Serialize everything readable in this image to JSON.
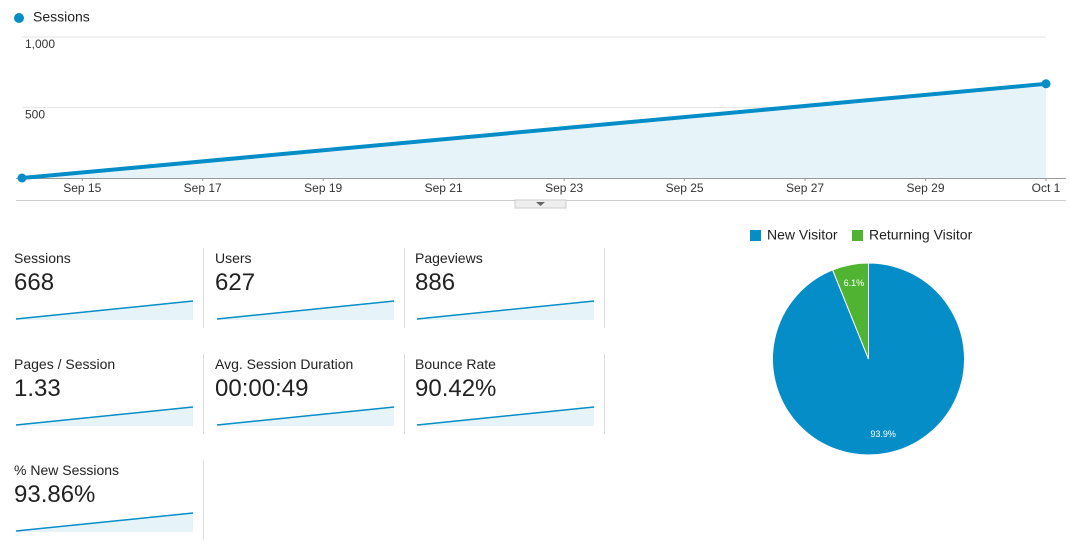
{
  "chart_data": [
    {
      "type": "line",
      "series": [
        {
          "name": "Sessions",
          "color": "#058dc7",
          "values": [
            0,
            668
          ]
        }
      ],
      "x": [
        14,
        31
      ],
      "xlim": [
        14,
        31
      ],
      "xticks": [
        {
          "value": 15,
          "label": "Sep 15"
        },
        {
          "value": 17,
          "label": "Sep 17"
        },
        {
          "value": 19,
          "label": "Sep 19"
        },
        {
          "value": 21,
          "label": "Sep 21"
        },
        {
          "value": 23,
          "label": "Sep 23"
        },
        {
          "value": 25,
          "label": "Sep 25"
        },
        {
          "value": 27,
          "label": "Sep 27"
        },
        {
          "value": 29,
          "label": "Sep 29"
        },
        {
          "value": 31,
          "label": "Oct 1"
        }
      ],
      "ylim": [
        0,
        1000
      ],
      "yticks": [
        500,
        {
          "value": 1000,
          "label": "1,000"
        }
      ],
      "grid": true
    },
    {
      "type": "pie",
      "categories": [
        "New Visitor",
        "Returning Visitor"
      ],
      "values": [
        93.9,
        6.1
      ],
      "value_labels": [
        "93.9%",
        "6.1%"
      ],
      "colors": [
        "#058dc7",
        "#50b432"
      ]
    }
  ],
  "metrics": [
    {
      "label": "Sessions",
      "value": "668"
    },
    {
      "label": "Users",
      "value": "627"
    },
    {
      "label": "Pageviews",
      "value": "886"
    },
    {
      "label": "Pages / Session",
      "value": "1.33"
    },
    {
      "label": "Avg. Session Duration",
      "value": "00:00:49"
    },
    {
      "label": "Bounce Rate",
      "value": "90.42%"
    },
    {
      "label": "% New Sessions",
      "value": "93.86%"
    }
  ]
}
